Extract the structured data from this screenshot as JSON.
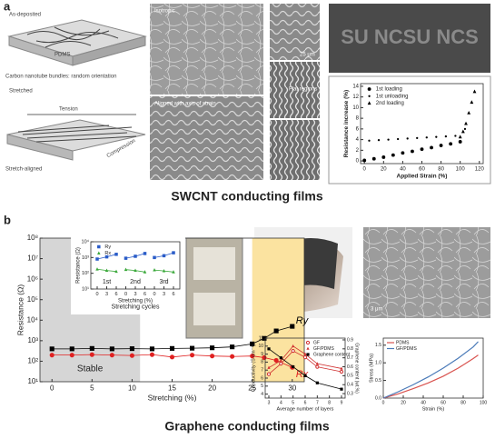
{
  "figure": {
    "panel_a": {
      "label": "a",
      "caption": "SWCNT conducting films",
      "schematic": {
        "top_label": "As-deposited",
        "substrate": "PDMS",
        "bundles": "Carbon nanotube bundles: random orientation",
        "bottom_label": "Stretched",
        "tension": "Tension",
        "compression": "Compression",
        "aligned": "Stretch-aligned"
      },
      "micrographs": {
        "isotropic": "Isotropic",
        "aligned": "Aligned with axis of strain",
        "flat": "Flat regions",
        "scale": "25 μm",
        "photo_text": "SU NCSU NCS"
      }
    },
    "panel_b": {
      "label": "b",
      "caption": "Graphene conducting films",
      "scale": "3 μm"
    }
  },
  "chart_data": [
    {
      "type": "scatter",
      "xlabel": "Applied Strain (%)",
      "ylabel": "Resistance increase (%)",
      "xlim": [
        -4,
        124
      ],
      "ylim": [
        -0.5,
        14.5
      ],
      "xticks": [
        0,
        20,
        40,
        60,
        80,
        100,
        120
      ],
      "yticks": [
        0,
        2,
        4,
        6,
        8,
        10,
        12,
        14
      ],
      "legend": "upper left",
      "series": [
        {
          "name": "1st loading",
          "color": "#000000",
          "marker": "circle",
          "x": [
            0,
            10,
            20,
            30,
            40,
            50,
            60,
            70,
            80,
            90,
            100
          ],
          "values": [
            0.1,
            0.4,
            0.7,
            1.1,
            1.5,
            1.8,
            2.2,
            2.5,
            2.9,
            3.2,
            3.6
          ]
        },
        {
          "name": "1st unloading",
          "color": "#000000",
          "marker": "dot",
          "x": [
            5,
            15,
            25,
            35,
            45,
            55,
            65,
            75,
            85,
            95,
            105
          ],
          "values": [
            3.8,
            3.9,
            4.0,
            4.1,
            4.2,
            4.3,
            4.4,
            4.5,
            4.6,
            4.7,
            6
          ]
        },
        {
          "name": "2nd loading",
          "color": "#000000",
          "marker": "triangle",
          "x": [
            100,
            103,
            106,
            109,
            112,
            115
          ],
          "values": [
            4.5,
            5.5,
            7,
            9,
            11,
            13
          ]
        }
      ]
    },
    {
      "type": "line",
      "xlabel": "Stretching (%)",
      "ylabel": "Resistance (Ω)",
      "log_y": true,
      "xlim": [
        -1.5,
        31.5
      ],
      "ylim": [
        10,
        100000000
      ],
      "xticks": [
        0,
        5,
        10,
        15,
        20,
        25,
        30
      ],
      "yticks": [
        {
          "value": 10,
          "label": "10¹"
        },
        {
          "value": 100,
          "label": "10²"
        },
        {
          "value": 1000,
          "label": "10³"
        },
        {
          "value": 10000,
          "label": "10⁴"
        },
        {
          "value": 100000,
          "label": "10⁵"
        },
        {
          "value": 1000000,
          "label": "10⁶"
        },
        {
          "value": 10000000,
          "label": "10⁷"
        },
        {
          "value": 100000000,
          "label": "10⁸"
        }
      ],
      "regions": [
        {
          "label": "Stable",
          "from": -1.5,
          "to": 11,
          "color": "#d6d6d6"
        },
        {
          "from": 25,
          "to": 31.5,
          "color": "#fbe3a0"
        }
      ],
      "x": [
        0,
        2.5,
        5,
        7.5,
        10,
        12.5,
        15,
        17.5,
        20,
        22.5,
        25,
        26.5,
        28,
        30
      ],
      "series": [
        {
          "name": "Ry",
          "color": "#000000",
          "marker": "square",
          "values": [
            400,
            400,
            420,
            400,
            410,
            400,
            420,
            430,
            450,
            500,
            700,
            1300,
            3000,
            5000
          ]
        },
        {
          "name": "Rx",
          "color": "#e02020",
          "marker": "circle",
          "values": [
            200,
            200,
            210,
            200,
            190,
            210,
            160,
            200,
            180,
            170,
            180,
            150,
            110,
            50
          ]
        }
      ]
    },
    {
      "type": "line",
      "xlabel": "Stretching (%)",
      "ylabel": "Resistance (Ω)",
      "log_y": true,
      "legend": "upper left",
      "xlim": [
        -2,
        26
      ],
      "ylim": [
        10,
        10000
      ],
      "xticks": [
        0,
        3,
        6,
        {
          "value": 9,
          "label": "0"
        },
        {
          "value": 12,
          "label": "3"
        },
        {
          "value": 15,
          "label": "6"
        },
        {
          "value": 18,
          "label": "0"
        },
        {
          "value": 21,
          "label": "3"
        },
        {
          "value": 24,
          "label": "6"
        }
      ],
      "yticks": [
        {
          "value": 10,
          "label": "10¹"
        },
        {
          "value": 100,
          "label": "10²"
        },
        {
          "value": 1000,
          "label": "10³"
        },
        {
          "value": 10000,
          "label": "10⁴"
        }
      ],
      "groups": [
        "1st",
        "2nd",
        "3rd"
      ],
      "group_label": "Stretching cycles",
      "x": [
        0,
        3,
        6,
        9,
        12,
        15,
        18,
        21,
        24
      ],
      "series": [
        {
          "name": "Ry",
          "color": "#2a5cc8",
          "marker": "square",
          "values": [
            800,
            1100,
            1600,
            900,
            1200,
            1800,
            1000,
            1300,
            2000
          ]
        },
        {
          "name": "Rx",
          "color": "#3aa83a",
          "marker": "triangle",
          "values": [
            180,
            150,
            130,
            170,
            150,
            120,
            160,
            140,
            120
          ]
        }
      ]
    },
    {
      "type": "line",
      "xlabel": "Average number of layers",
      "ylabel": "Conductivity (S cm⁻¹)",
      "y2label": "Graphene content (wt.%)",
      "legend": "upper right",
      "xlim": [
        2.7,
        9.3
      ],
      "ylim": [
        3.5,
        11
      ],
      "y2lim": [
        0.25,
        0.92
      ],
      "xticks": [
        3,
        4,
        5,
        6,
        7,
        8,
        9
      ],
      "yticks": [
        4,
        5,
        6,
        7,
        8,
        9,
        10,
        11
      ],
      "y2ticks": [
        0.3,
        0.4,
        0.5,
        0.6,
        0.7,
        0.8,
        0.9
      ],
      "x": [
        3,
        4,
        5,
        6,
        7,
        9
      ],
      "series": [
        {
          "name": "GF",
          "color": "#d03030",
          "marker": "open",
          "values": [
            6.5,
            7.8,
            9.4,
            8.6,
            7.4,
            6.8
          ]
        },
        {
          "name": "GF/PDMS",
          "color": "#d03030",
          "marker": "triangle",
          "values": [
            7.3,
            8.2,
            10,
            9,
            7.8,
            7.2
          ]
        },
        {
          "name": "Graphene content",
          "color": "#000000",
          "marker": "square",
          "axis": "y2",
          "values": [
            0.8,
            0.7,
            0.6,
            0.5,
            0.42,
            0.35
          ]
        }
      ]
    },
    {
      "type": "line",
      "xlabel": "Strain (%)",
      "ylabel": "Stress (MPa)",
      "legend": "upper left",
      "xlim": [
        0,
        100
      ],
      "ylim": [
        0,
        1.7
      ],
      "xticks": [
        0,
        20,
        40,
        60,
        80,
        100
      ],
      "yticks": [
        {
          "value": 0,
          "label": "0.0"
        },
        {
          "value": 0.5,
          "label": "0.5"
        },
        {
          "value": 1,
          "label": "1.0"
        },
        {
          "value": 1.5,
          "label": "1.5"
        }
      ],
      "x": [
        0,
        15,
        30,
        45,
        60,
        75,
        90,
        95
      ],
      "series": [
        {
          "name": "PDMS",
          "color": "#d9534f",
          "marker": "none",
          "values": [
            0,
            0.12,
            0.27,
            0.43,
            0.62,
            0.85,
            1.12,
            1.22
          ]
        },
        {
          "name": "GF/PDMS",
          "color": "#4a7ab8",
          "marker": "none",
          "values": [
            0,
            0.18,
            0.38,
            0.6,
            0.85,
            1.13,
            1.45,
            1.6
          ]
        }
      ]
    }
  ]
}
